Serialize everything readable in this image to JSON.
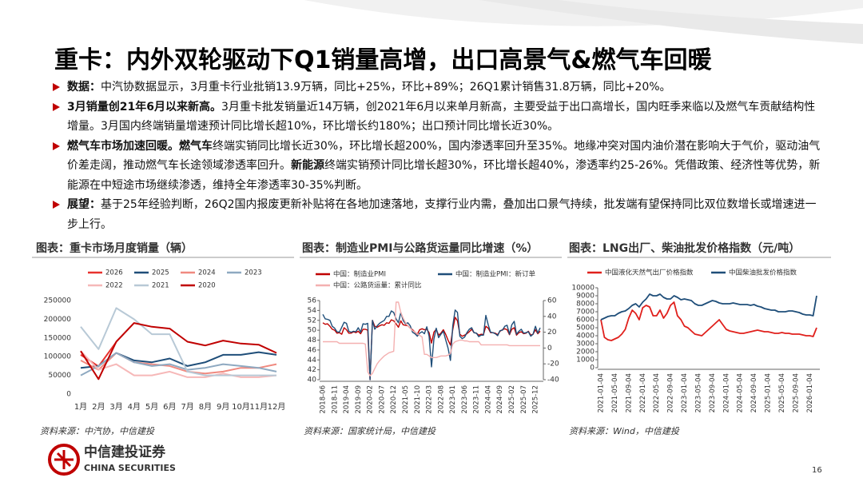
{
  "header": {
    "title": "重卡：内外双轮驱动下Q1销量高增，出口高景气&燃气车回暖"
  },
  "bullets": [
    [
      {
        "text": "数据：",
        "bold": true
      },
      {
        "text": "中汽协数据显示，3月重卡行业批销13.9万辆，同比+25%，环比+89%；26Q1累计销售31.8万辆，同比+20%。"
      }
    ],
    [
      {
        "text": "3月销量创21年6月以来新高。",
        "bold": true
      },
      {
        "text": "3月重卡批发销量近14万辆，创2021年6月以来单月新高，主要受益于出口高增长，国内旺季来临以及燃气车贡献结构性增量。3月国内终端销量增速预计同比增长超10%，环比增长约180%；出口预计同比增长近30%。"
      }
    ],
    [
      {
        "text": "燃气车市场加速回暖。",
        "bold": true
      },
      {
        "text": "燃气车",
        "bold": true
      },
      {
        "text": "终端实销同比增长近30%，环比增长超200%，国内渗透率回升至35%。地缘冲突对国内油价潜在影响大于气价，驱动油气价差走阔，推动燃气车长途领域渗透率回升。"
      },
      {
        "text": "新能源",
        "bold": true
      },
      {
        "text": "终端实销预计同比增长超30%，环比增长超40%，渗透率约25-26%。凭借政策、经济性等优势，新能源在中短途市场继续渗透，维持全年渗透率30-35%判断。"
      }
    ],
    [
      {
        "text": "展望：",
        "bold": true
      },
      {
        "text": "基于25年经验判断，26Q2国内报废更新补贴将在各地加速落地，支撑行业内需，叠加出口景气持续，批发端有望保持同比双位数增长或增速进一步上行。"
      }
    ]
  ],
  "chart_data": [
    {
      "type": "line",
      "title": "图表：重卡市场月度销量（辆）",
      "source": "资料来源：中汽协，中信建投",
      "categories": [
        "1月",
        "2月",
        "3月",
        "4月",
        "5月",
        "6月",
        "7月",
        "8月",
        "9月",
        "10月",
        "11月",
        "12月"
      ],
      "ylim": [
        0,
        250000
      ],
      "yticks": [
        0,
        50000,
        100000,
        150000,
        200000,
        250000
      ],
      "series": [
        {
          "name": "2026",
          "color": "#e8322e",
          "values": [
            105000,
            74000,
            139000,
            null,
            null,
            null,
            null,
            null,
            null,
            null,
            null,
            null
          ]
        },
        {
          "name": "2025",
          "color": "#1f4e79",
          "values": [
            70000,
            75000,
            110000,
            90000,
            85000,
            95000,
            75000,
            85000,
            105000,
            105000,
            112000,
            105000
          ]
        },
        {
          "name": "2024",
          "color": "#f08a80",
          "values": [
            90000,
            65000,
            110000,
            85000,
            80000,
            75000,
            60000,
            55000,
            60000,
            70000,
            70000,
            80000
          ]
        },
        {
          "name": "2023",
          "color": "#8ea9c1",
          "values": [
            50000,
            75000,
            110000,
            85000,
            75000,
            80000,
            65000,
            70000,
            80000,
            75000,
            70000,
            60000
          ]
        },
        {
          "name": "2022",
          "color": "#f6b8b8",
          "values": [
            115000,
            65000,
            80000,
            50000,
            50000,
            60000,
            45000,
            45000,
            55000,
            45000,
            45000,
            50000
          ]
        },
        {
          "name": "2021",
          "color": "#b8c9d6",
          "values": [
            180000,
            120000,
            230000,
            200000,
            160000,
            160000,
            60000,
            50000,
            50000,
            50000,
            50000,
            50000
          ]
        },
        {
          "name": "2020",
          "color": "#c00000",
          "values": [
            115000,
            40000,
            140000,
            190000,
            180000,
            175000,
            140000,
            130000,
            143000,
            135000,
            132000,
            110000
          ]
        }
      ]
    },
    {
      "type": "line",
      "title": "图表：制造业PMI与公路货运量同比增速（%）",
      "source": "资料来源：国家统计局，中信建投",
      "categories": [
        "2018-06",
        null,
        null,
        null,
        null,
        "2018-11",
        null,
        null,
        null,
        null,
        "2019-04",
        null,
        null,
        null,
        null,
        "2019-09",
        null,
        null,
        null,
        null,
        "2020-02",
        null,
        null,
        null,
        null,
        "2020-07",
        null,
        null,
        null,
        null,
        "2020-12",
        null,
        null,
        null,
        null,
        "2021-05",
        null,
        null,
        null,
        null,
        "2021-10",
        null,
        null,
        null,
        null,
        "2022-03",
        null,
        null,
        null,
        null,
        "2022-08",
        null,
        null,
        null,
        null,
        "2023-01",
        null,
        null,
        null,
        null,
        "2023-06",
        null,
        null,
        null,
        null,
        "2023-11",
        null,
        null,
        null,
        null,
        "2024-04",
        null,
        null,
        null,
        null,
        "2024-09",
        null,
        null,
        null,
        null,
        "2025-02",
        null,
        null,
        null,
        null,
        "2025-07",
        null,
        null,
        null,
        null,
        "2025-12",
        null,
        null
      ],
      "ylim": [
        40,
        56
      ],
      "yticks": [
        40,
        42,
        44,
        46,
        48,
        50,
        52,
        54,
        56
      ],
      "y2lim": [
        -40,
        60
      ],
      "y2ticks": [
        -40,
        -20,
        0,
        20,
        40,
        60
      ],
      "series": [
        {
          "name": "中国：制造业PMI",
          "color": "#c00000",
          "values": [
            51.5,
            51.2,
            51.3,
            50.8,
            50.2,
            50.0,
            49.4,
            49.5,
            49.2,
            50.5,
            50.1,
            49.4,
            49.4,
            49.7,
            49.5,
            49.8,
            49.3,
            50.2,
            50.2,
            50.0,
            40.0,
            52.0,
            50.8,
            50.6,
            50.9,
            51.1,
            51.0,
            51.5,
            51.4,
            52.1,
            51.9,
            51.3,
            50.6,
            51.9,
            51.1,
            51.0,
            50.9,
            50.4,
            50.1,
            49.6,
            49.2,
            50.1,
            50.3,
            50.1,
            50.2,
            49.5,
            47.4,
            49.6,
            50.2,
            49.0,
            49.4,
            50.1,
            49.2,
            48.0,
            47.0,
            50.1,
            52.6,
            51.9,
            49.2,
            48.8,
            49.0,
            49.3,
            49.7,
            50.2,
            49.5,
            49.4,
            49.0,
            49.2,
            49.1,
            50.8,
            50.4,
            49.5,
            49.5,
            49.4,
            49.1,
            49.8,
            50.1,
            50.3,
            50.1,
            49.1,
            50.2,
            50.5,
            49.0,
            49.5,
            49.7,
            49.3,
            49.4,
            49.8,
            49.0,
            49.2,
            50.1,
            49.3,
            49.8
          ]
        },
        {
          "name": "中国：制造业PMI：新订单",
          "color": "#1f4e79",
          "values": [
            53.2,
            52.3,
            52.2,
            52.0,
            50.8,
            50.4,
            49.7,
            49.6,
            50.6,
            51.6,
            51.4,
            49.8,
            49.6,
            49.8,
            49.7,
            50.5,
            49.6,
            51.3,
            51.2,
            51.4,
            40.0,
            52.0,
            50.2,
            50.9,
            51.4,
            51.7,
            52.0,
            52.8,
            52.8,
            53.9,
            53.6,
            52.3,
            51.5,
            53.6,
            52.0,
            51.3,
            51.5,
            50.9,
            49.6,
            49.3,
            48.8,
            49.4,
            49.7,
            49.3,
            50.7,
            48.8,
            42.6,
            48.2,
            50.4,
            48.5,
            49.2,
            49.8,
            48.1,
            46.4,
            43.9,
            50.9,
            54.1,
            53.6,
            48.8,
            48.3,
            48.6,
            49.5,
            50.2,
            50.5,
            49.5,
            49.4,
            48.7,
            49.0,
            49.0,
            53.0,
            51.1,
            49.6,
            49.5,
            49.3,
            48.9,
            49.9,
            50.0,
            50.8,
            51.0,
            49.2,
            51.1,
            51.8,
            49.2,
            49.8,
            50.2,
            49.4,
            49.5,
            49.7,
            48.8,
            49.2,
            50.8,
            49.4,
            50.5
          ]
        },
        {
          "name": "中国：公路货运量：累计同比",
          "color": "#f4b0b0",
          "axis": "y2",
          "values": [
            8,
            8,
            8,
            8,
            8,
            8,
            8,
            6,
            6,
            6,
            6,
            6,
            6,
            6,
            6,
            6,
            6,
            6,
            5,
            -30,
            -35,
            -32,
            -26,
            -20,
            -16,
            -13,
            -10,
            -8,
            -6,
            -5,
            -4,
            58,
            58,
            45,
            38,
            32,
            28,
            25,
            22,
            20,
            18,
            16,
            14,
            -8,
            -8,
            -10,
            -12,
            -12,
            -12,
            -11,
            -10,
            -10,
            -10,
            -9,
            -7,
            5,
            8,
            9,
            10,
            10,
            9,
            9,
            8,
            8,
            8,
            8,
            8,
            4,
            4,
            4,
            4,
            4,
            4,
            4,
            4,
            4,
            4,
            4,
            4,
            3,
            3,
            3,
            3,
            3,
            3,
            3,
            3,
            3,
            3,
            3,
            3,
            3,
            3
          ]
        }
      ]
    },
    {
      "type": "line",
      "title": "图表：LNG出厂、柴油批发价格指数（元/吨）",
      "source": "资料来源：Wind，中信建投",
      "categories": [
        "2021-01-04",
        null,
        null,
        null,
        "2021-05-04",
        null,
        null,
        null,
        "2021-09-04",
        null,
        null,
        null,
        "2022-01-04",
        null,
        null,
        null,
        "2022-05-04",
        null,
        null,
        null,
        "2022-09-04",
        null,
        null,
        null,
        "2023-01-04",
        null,
        null,
        null,
        "2023-05-04",
        null,
        null,
        null,
        "2023-09-04",
        null,
        null,
        null,
        "2024-01-04",
        null,
        null,
        null,
        "2024-05-04",
        null,
        null,
        null,
        "2024-09-04",
        null,
        null,
        null,
        "2025-01-04",
        null,
        null,
        null,
        "2025-05-04",
        null,
        null,
        null,
        "2025-09-04",
        null,
        null,
        null,
        "2026-01-04",
        null,
        null
      ],
      "ylim": [
        0,
        10000
      ],
      "yticks": [
        0,
        1000,
        2000,
        3000,
        4000,
        5000,
        6000,
        7000,
        8000,
        9000,
        10000
      ],
      "series": [
        {
          "name": "中国液化天然气出厂价格指数",
          "color": "#e0201c",
          "values": [
            6000,
            3800,
            3500,
            3400,
            3600,
            3800,
            4200,
            4800,
            6200,
            7200,
            6800,
            6000,
            7500,
            7800,
            7600,
            6500,
            6500,
            7200,
            6200,
            6800,
            7800,
            8200,
            6500,
            6000,
            5200,
            5000,
            4600,
            4200,
            4100,
            4000,
            4400,
            4800,
            5200,
            5600,
            6000,
            5400,
            4800,
            4600,
            4500,
            4400,
            4300,
            4300,
            4400,
            4500,
            4600,
            4700,
            4600,
            4500,
            4500,
            4400,
            4300,
            4300,
            4400,
            4300,
            4300,
            4200,
            4200,
            4200,
            4100,
            4000,
            4000,
            3900,
            5000
          ]
        },
        {
          "name": "中国柴油批发价格指数",
          "color": "#1f4e79",
          "values": [
            6000,
            6200,
            6400,
            6500,
            6500,
            6800,
            7000,
            7100,
            7400,
            7800,
            8000,
            7600,
            8200,
            8600,
            9200,
            9000,
            9000,
            9200,
            8800,
            8600,
            8600,
            9000,
            8800,
            8500,
            8600,
            8500,
            8400,
            8000,
            7800,
            7800,
            8000,
            8200,
            8400,
            8300,
            8100,
            8000,
            8000,
            8000,
            8100,
            8000,
            7900,
            7900,
            7900,
            7800,
            7900,
            7700,
            7600,
            7400,
            7300,
            7200,
            7200,
            7000,
            7000,
            7000,
            7100,
            7100,
            7000,
            6900,
            6700,
            6600,
            6600,
            6500,
            9000
          ]
        }
      ]
    }
  ],
  "footer": {
    "logo_cn": "中信建投证券",
    "logo_en": "CHINA SECURITIES",
    "page": "16"
  }
}
